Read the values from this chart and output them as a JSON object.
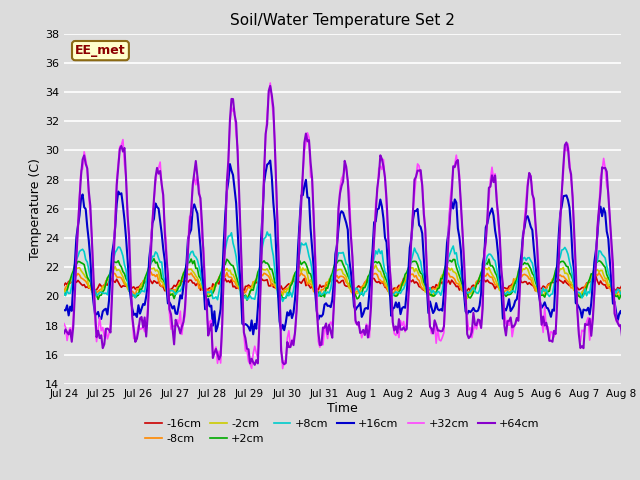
{
  "title": "Soil/Water Temperature Set 2",
  "xlabel": "Time",
  "ylabel": "Temperature (C)",
  "ylim": [
    14,
    38
  ],
  "yticks": [
    14,
    16,
    18,
    20,
    22,
    24,
    26,
    28,
    30,
    32,
    34,
    36,
    38
  ],
  "bg_color": "#dcdcdc",
  "watermark": "EE_met",
  "tick_labels": [
    "Jul 24",
    "Jul 25",
    "Jul 26",
    "Jul 27",
    "Jul 28",
    "Jul 29",
    "Jul 30",
    "Jul 31",
    "Aug 1",
    "Aug 2",
    "Aug 3",
    "Aug 4",
    "Aug 5",
    "Aug 6",
    "Aug 7",
    "Aug 8"
  ],
  "series": [
    {
      "label": "-16cm",
      "color": "#cc0000",
      "lw": 1.2
    },
    {
      "label": "-8cm",
      "color": "#ff8800",
      "lw": 1.2
    },
    {
      "label": "-2cm",
      "color": "#cccc00",
      "lw": 1.2
    },
    {
      "label": "+2cm",
      "color": "#00aa00",
      "lw": 1.2
    },
    {
      "label": "+8cm",
      "color": "#00cccc",
      "lw": 1.2
    },
    {
      "label": "+16cm",
      "color": "#0000cc",
      "lw": 1.5
    },
    {
      "label": "+32cm",
      "color": "#ff44ff",
      "lw": 1.2
    },
    {
      "label": "+64cm",
      "color": "#8800cc",
      "lw": 1.5
    }
  ]
}
